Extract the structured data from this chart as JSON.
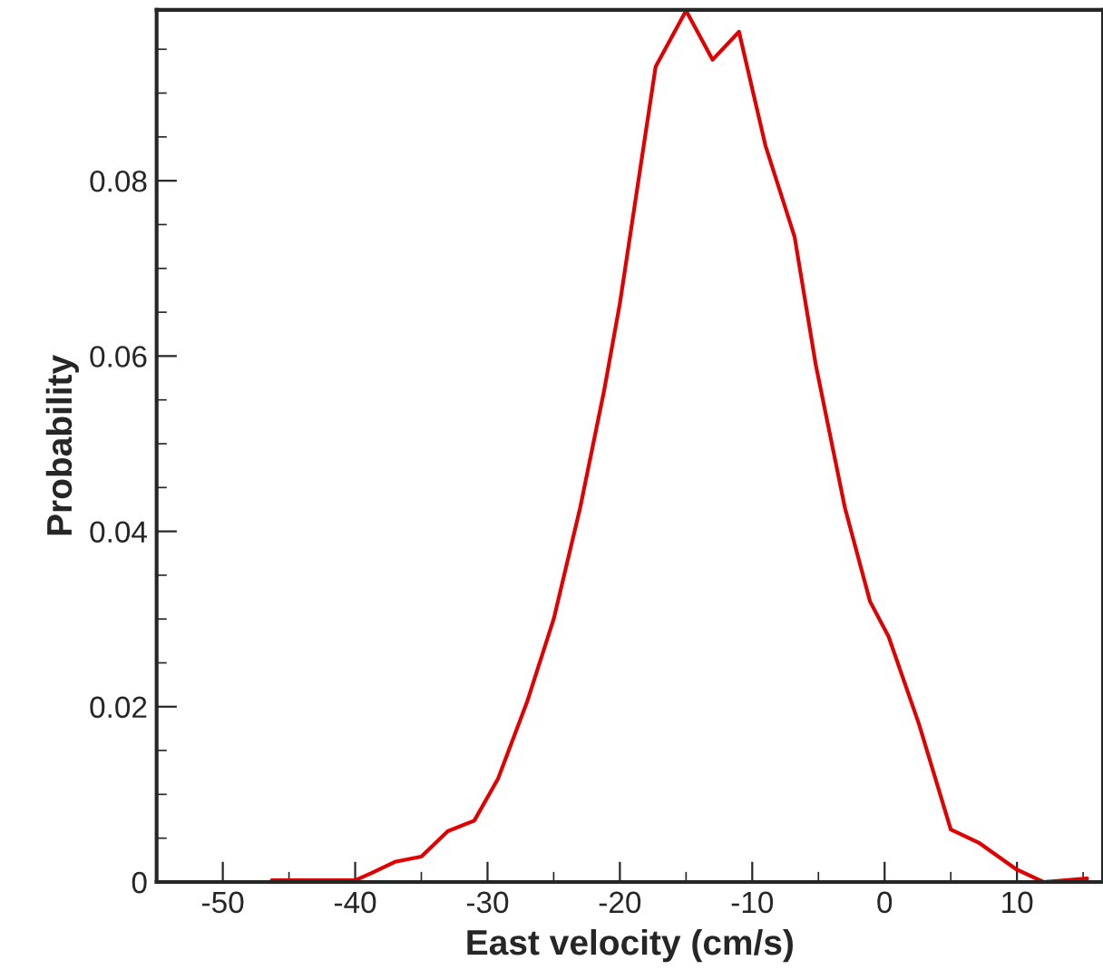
{
  "chart_data": {
    "type": "line",
    "xlabel": "East velocity (cm/s)",
    "ylabel": "Probability",
    "x": [
      -46.3,
      -40,
      -38.8,
      -37,
      -35,
      -33,
      -31,
      -29.2,
      -27,
      -25,
      -23,
      -21.2,
      -20,
      -17.3,
      -15,
      -13,
      -11,
      -9,
      -6.8,
      -5.2,
      -3,
      -1.1,
      0.3,
      2.6,
      5,
      7.1,
      9.9,
      12,
      15.3
    ],
    "series": [
      {
        "color": "#e00000",
        "values": [
          0.0002,
          0.0002,
          0.001,
          0.0023,
          0.0029,
          0.0058,
          0.007,
          0.0118,
          0.0206,
          0.03,
          0.0427,
          0.056,
          0.066,
          0.093,
          0.0994,
          0.0938,
          0.097,
          0.084,
          0.0736,
          0.059,
          0.0427,
          0.032,
          0.028,
          0.018,
          0.006,
          0.0045,
          0.0015,
          0.0,
          0.0004
        ]
      }
    ],
    "xlim": [
      -55,
      16.5
    ],
    "ylim": [
      0,
      0.0995
    ],
    "xticks": [
      -50,
      -40,
      -30,
      -20,
      -10,
      0,
      10
    ],
    "yticks": [
      {
        "value": 0,
        "label": "0"
      },
      0.02,
      0.04,
      0.06,
      0.08
    ],
    "grid": false,
    "marker": "none",
    "line_style": "solid"
  }
}
